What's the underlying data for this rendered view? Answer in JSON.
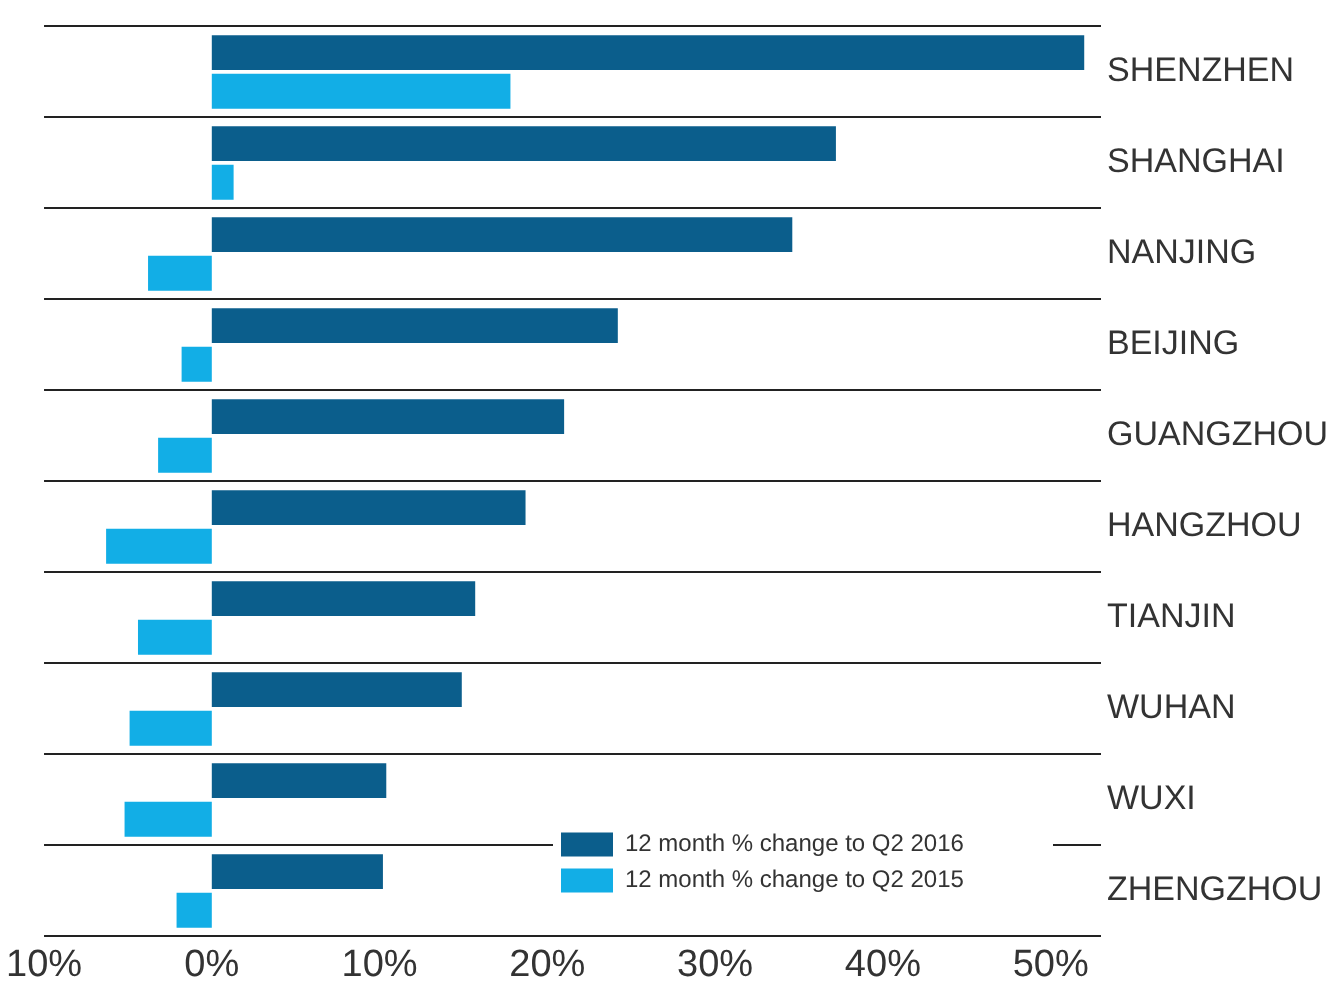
{
  "chart_data": {
    "type": "bar",
    "orientation": "horizontal",
    "categories": [
      "SHENZHEN",
      "SHANGHAI",
      "NANJING",
      "BEIJING",
      "GUANGZHOU",
      "HANGZHOU",
      "TIANJIN",
      "WUHAN",
      "WUXI",
      "ZHENGZHOU"
    ],
    "series": [
      {
        "name": "12 month % change to Q2 2016",
        "color": "#0b5e8c",
        "values": [
          52,
          37.2,
          34.6,
          24.2,
          21,
          18.7,
          15.7,
          14.9,
          10.4,
          10.2
        ]
      },
      {
        "name": "12 month % change to Q2 2015",
        "color": "#12aee6",
        "values": [
          17.8,
          1.3,
          -3.8,
          -1.8,
          -3.2,
          -6.3,
          -4.4,
          -4.9,
          -5.2,
          -2.1
        ]
      }
    ],
    "xlim": [
      -10,
      53
    ],
    "xticks": [
      {
        "value": -10,
        "label": "10%"
      },
      {
        "value": 0,
        "label": "0%"
      },
      {
        "value": 10,
        "label": "10%"
      },
      {
        "value": 20,
        "label": "20%"
      },
      {
        "value": 30,
        "label": "30%"
      },
      {
        "value": 40,
        "label": "40%"
      },
      {
        "value": 50,
        "label": "50%"
      }
    ],
    "grid": "y",
    "legend": "bottom right"
  }
}
